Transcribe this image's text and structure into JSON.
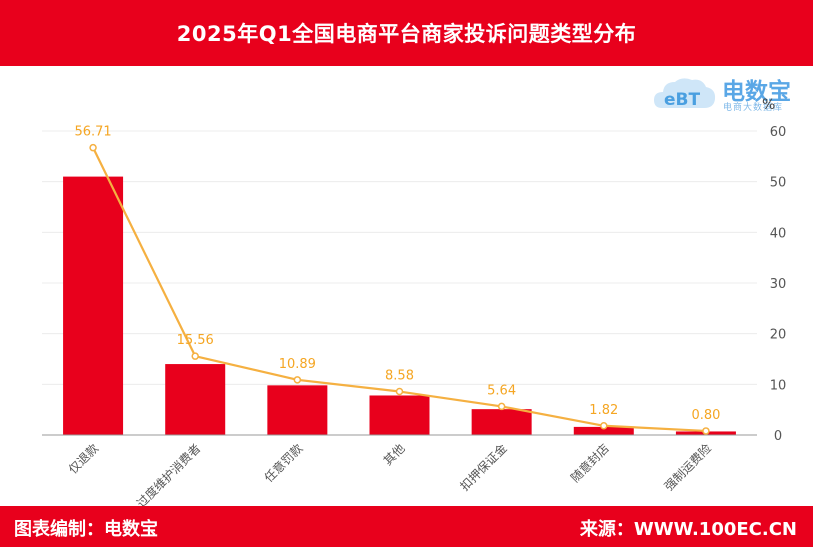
{
  "header": {
    "title": "2025年Q1全国电商平台商家投诉问题类型分布"
  },
  "footer": {
    "left": "图表编制：电数宝",
    "right": "来源：WWW.100EC.CN"
  },
  "logo": {
    "brand": "电数宝",
    "sub": "电商大数据库",
    "mark_text": "eBT"
  },
  "colors": {
    "bar": "#e8001c",
    "line": "#f5b041",
    "header": "#e8001c"
  },
  "chart_data": {
    "type": "bar",
    "title": "2025年Q1全国电商平台商家投诉问题类型分布",
    "categories": [
      "仅退款",
      "过度维护消费者",
      "任意罚款",
      "其他",
      "扣押保证金",
      "随意封店",
      "强制运费险"
    ],
    "series": [
      {
        "type": "bar",
        "values": [
          51.0,
          14.0,
          9.8,
          7.8,
          5.1,
          1.6,
          0.7
        ]
      },
      {
        "type": "line",
        "values": [
          56.71,
          15.56,
          10.89,
          8.58,
          5.64,
          1.82,
          0.8
        ]
      }
    ],
    "data_labels": [
      "56.71",
      "15.56",
      "10.89",
      "8.58",
      "5.64",
      "1.82",
      "0.80"
    ],
    "ylabel": "%",
    "ylim": [
      0,
      60
    ],
    "yticks": [
      0,
      10,
      20,
      30,
      40,
      50,
      60
    ],
    "y_axis_side": "right",
    "grid": true,
    "legend": "none"
  }
}
